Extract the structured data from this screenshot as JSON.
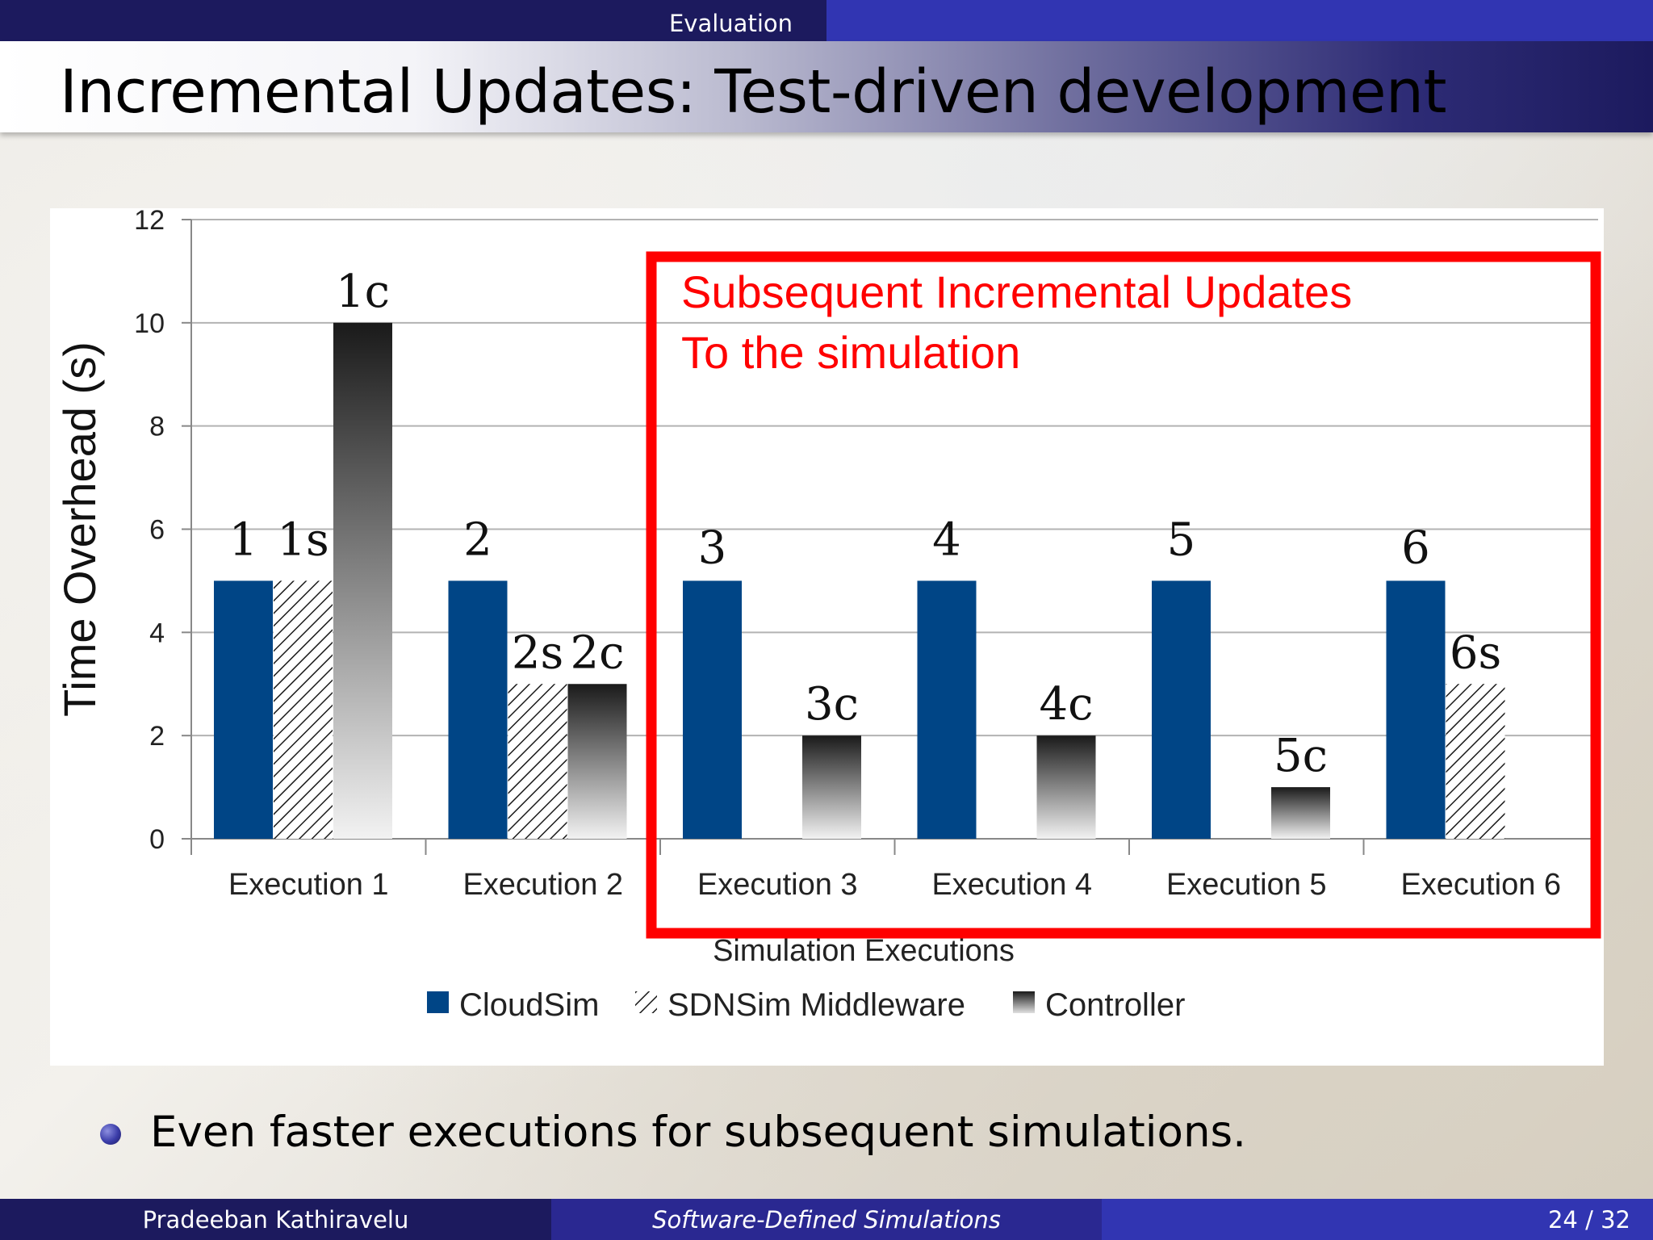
{
  "header": {
    "section": "Evaluation"
  },
  "title": "Incremental Updates:  Test-driven development",
  "bullet": "Even faster executions for subsequent simulations.",
  "footer": {
    "author": "Pradeeban Kathiravelu",
    "talk_title": "Software-Defined Simulations",
    "page": "24 / 32"
  },
  "colors": {
    "cloudsim": "#004586",
    "callout": "#ff0000",
    "grid": "#b3b3b3",
    "header_dark": "#1c1a5e",
    "header_light": "#3135b2"
  },
  "chart_data": {
    "type": "bar",
    "categories": [
      "Execution 1",
      "Execution 2",
      "Execution 3",
      "Execution 4",
      "Execution 5",
      "Execution 6"
    ],
    "xlabel": "Simulation Executions",
    "ylabel": "Time Overhead (s)",
    "ylim": [
      0,
      12
    ],
    "yticks": [
      0,
      2,
      4,
      6,
      8,
      10,
      12
    ],
    "grid": true,
    "legend_position": "bottom",
    "series": [
      {
        "name": "CloudSim",
        "values": [
          5,
          5,
          5,
          5,
          5,
          5
        ],
        "labels": [
          "1",
          "2",
          "3",
          "4",
          "5",
          "6"
        ],
        "style": "solid"
      },
      {
        "name": "SDNSim Middleware",
        "values": [
          5,
          3,
          null,
          null,
          null,
          3
        ],
        "labels": [
          "1s",
          "2s",
          "",
          "",
          "",
          "6s"
        ],
        "style": "hatched"
      },
      {
        "name": "Controller",
        "values": [
          10,
          3,
          2,
          2,
          1,
          null
        ],
        "labels": [
          "1c",
          "2c",
          "3c",
          "4c",
          "5c",
          ""
        ],
        "style": "gradient"
      }
    ],
    "annotation": {
      "lines": [
        "Subsequent Incremental Updates",
        "To the simulation"
      ],
      "spans": [
        "Execution 3",
        "Execution 6"
      ]
    }
  }
}
